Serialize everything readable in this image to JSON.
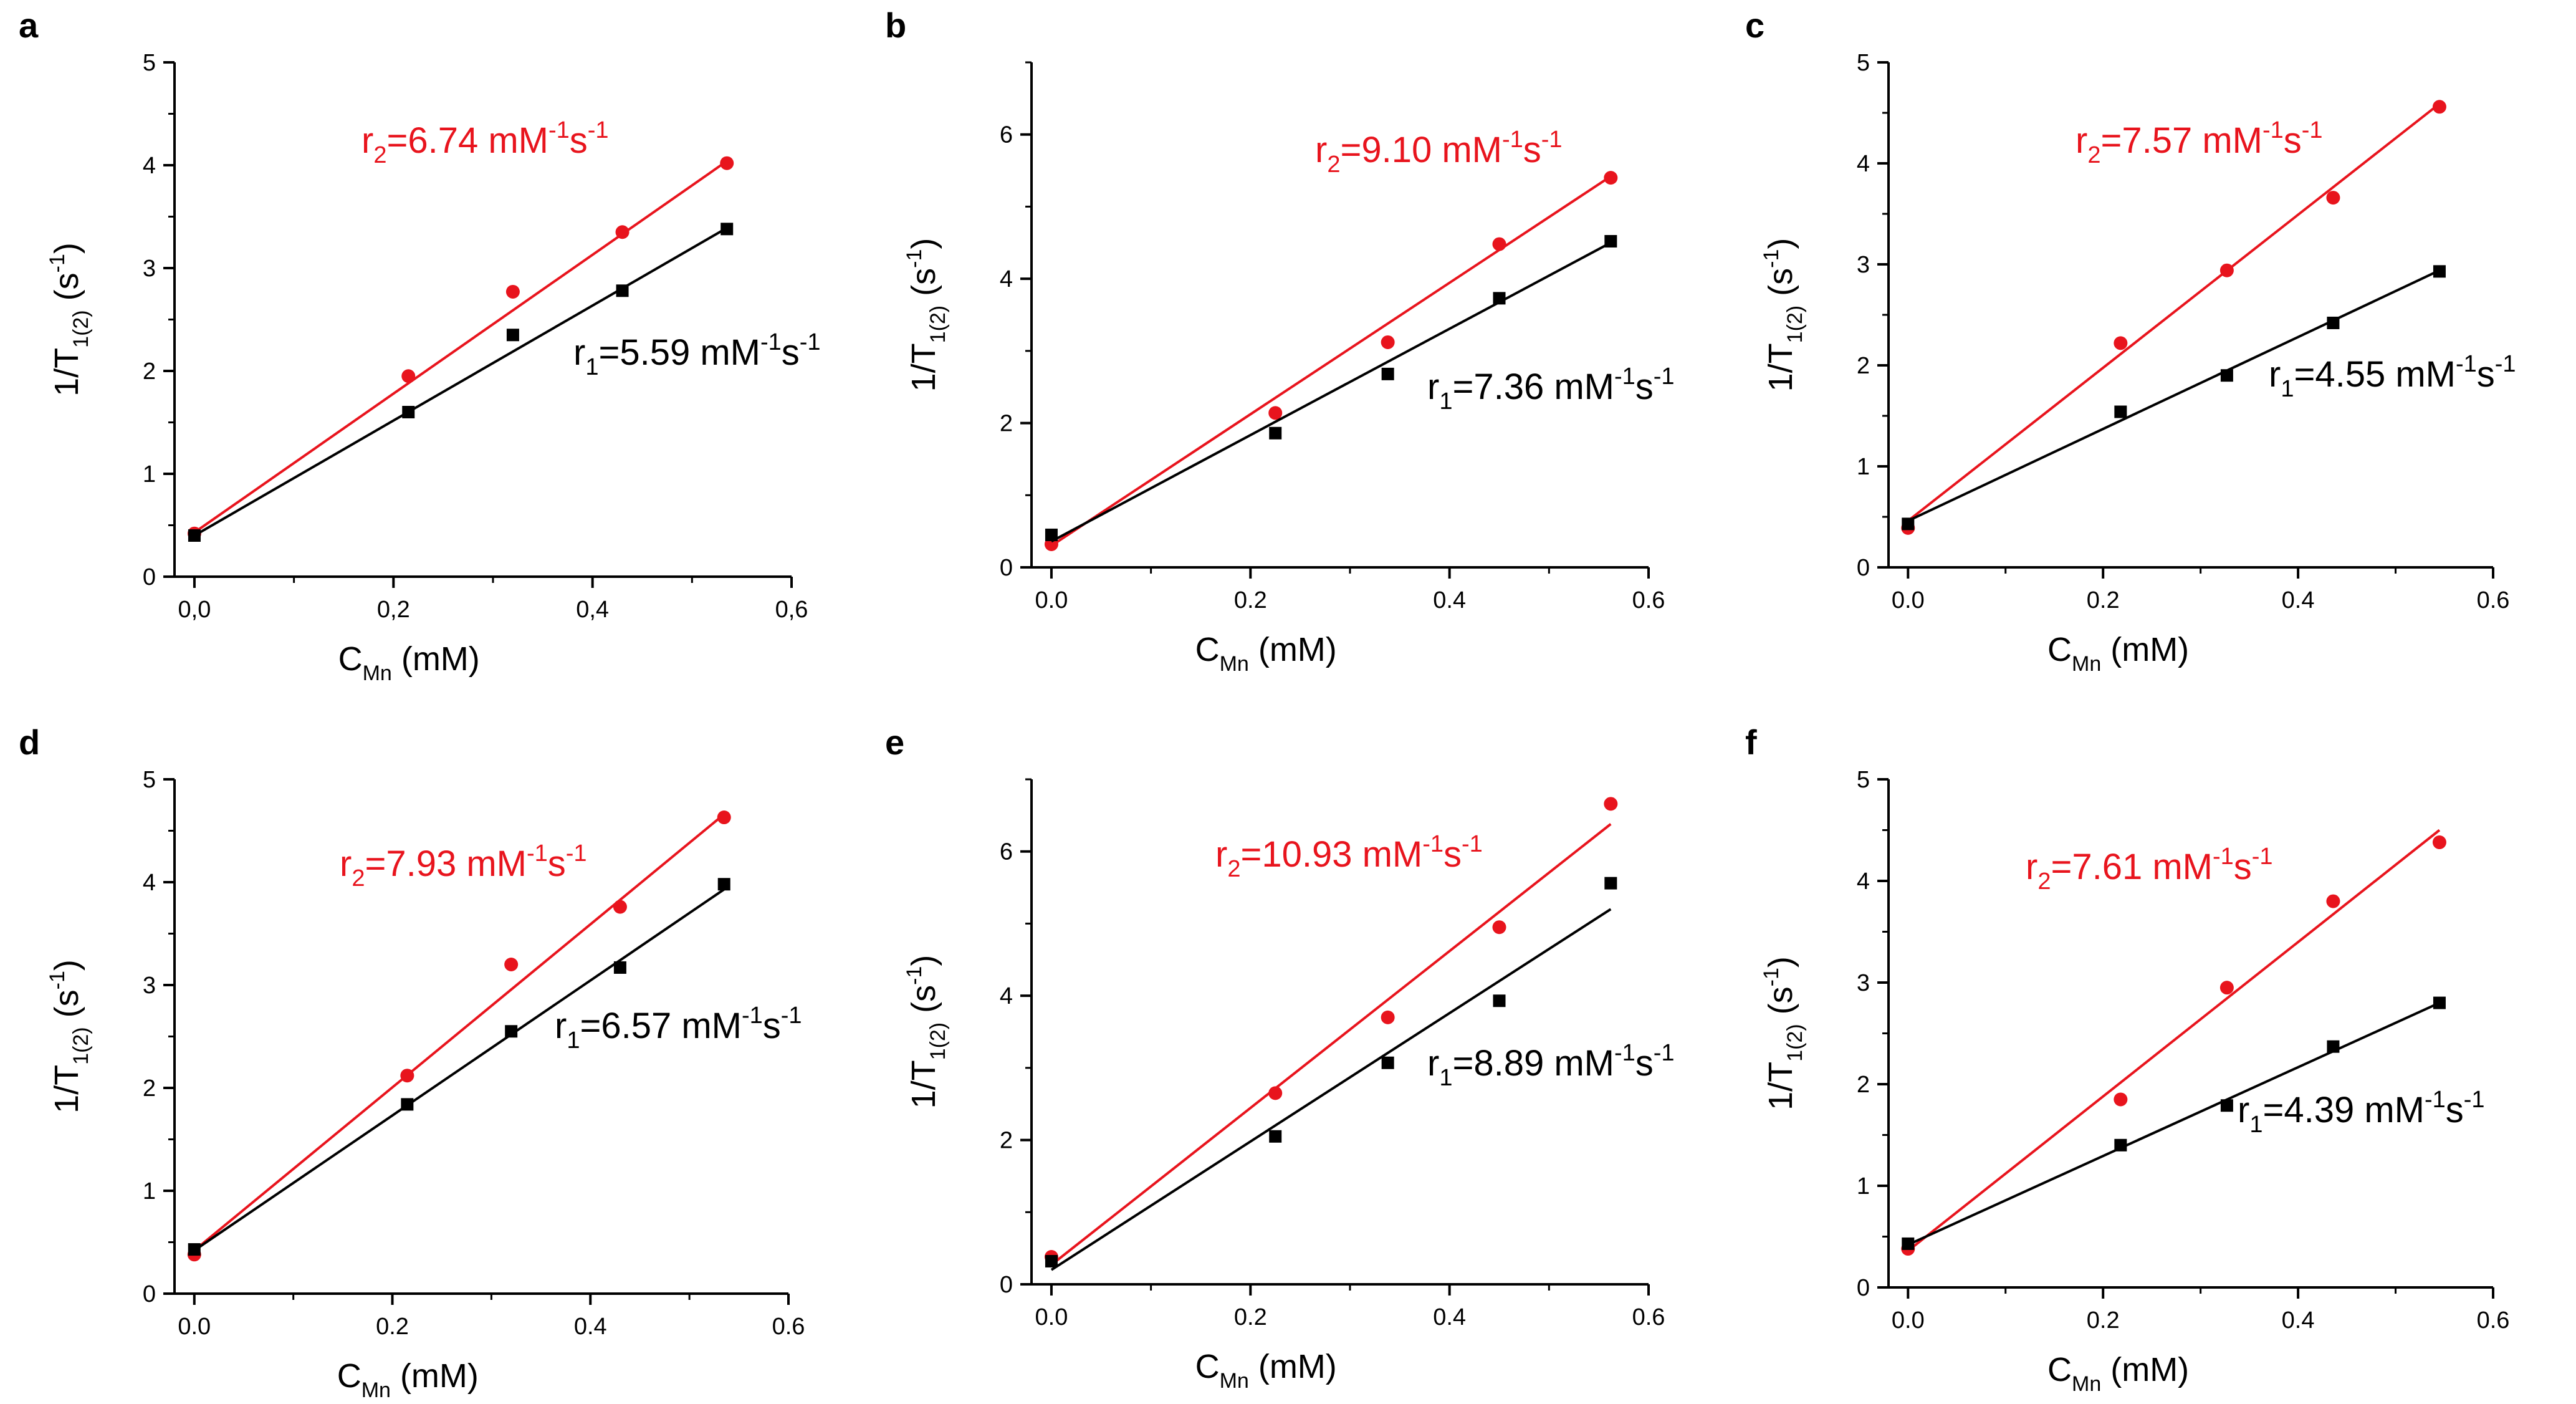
{
  "figure": {
    "colors": {
      "r2": "#e8141d",
      "r1": "#000000",
      "axis": "#000000"
    },
    "icons": {
      "r1_marker": "square-marker",
      "r2_marker": "circle-marker"
    }
  },
  "chart_data": [
    {
      "panel": "a",
      "type": "scatter",
      "xlabel": {
        "main": "C",
        "sub": "Mn",
        "unit": " (mM)"
      },
      "ylabel": {
        "main": "1/T",
        "sub": "1(2)",
        "unit": " (s",
        "unit_sup": "-1",
        "close": ")"
      },
      "xlim": [
        -0.02,
        0.6
      ],
      "ylim": [
        0,
        5
      ],
      "xticks": [
        0,
        0.2,
        0.4,
        0.6
      ],
      "xtick_labels": [
        "0,0",
        "0,2",
        "0,4",
        "0,6"
      ],
      "yticks": [
        0,
        1,
        2,
        3,
        4,
        5
      ],
      "ytick_labels": [
        "0",
        "1",
        "2",
        "3",
        "4",
        "5"
      ],
      "series": [
        {
          "name": "r2",
          "marker": "circle",
          "x": [
            0,
            0.215,
            0.32,
            0.43,
            0.535
          ],
          "y": [
            0.42,
            1.95,
            2.77,
            3.35,
            4.02
          ],
          "fit": {
            "x": [
              0,
              0.535
            ],
            "y": [
              0.43,
              4.04
            ]
          },
          "annotation": {
            "symbol": "r",
            "sub": "2",
            "value": "=6.74 mM",
            "sup1": "-1",
            "mid": "s",
            "sup2": "-1"
          }
        },
        {
          "name": "r1",
          "marker": "square",
          "x": [
            0,
            0.215,
            0.32,
            0.43,
            0.535
          ],
          "y": [
            0.4,
            1.6,
            2.35,
            2.78,
            3.38
          ],
          "fit": {
            "x": [
              0,
              0.535
            ],
            "y": [
              0.4,
              3.39
            ]
          },
          "annotation": {
            "symbol": "r",
            "sub": "1",
            "value": "=5.59 mM",
            "sup1": "-1",
            "mid": "s",
            "sup2": "-1"
          }
        }
      ]
    },
    {
      "panel": "b",
      "type": "scatter",
      "xlabel": {
        "main": "C",
        "sub": "Mn",
        "unit": " (mM)"
      },
      "ylabel": {
        "main": "1/T",
        "sub": "1(2)",
        "unit": " (s",
        "unit_sup": "-1",
        "close": ")"
      },
      "xlim": [
        -0.02,
        0.6
      ],
      "ylim": [
        0,
        7
      ],
      "xticks": [
        0,
        0.2,
        0.4,
        0.6
      ],
      "xtick_labels": [
        "0.0",
        "0.2",
        "0.4",
        "0.6"
      ],
      "yticks": [
        0,
        2,
        4,
        6
      ],
      "ytick_labels": [
        "0",
        "2",
        "4",
        "6"
      ],
      "series": [
        {
          "name": "r2",
          "marker": "circle",
          "x": [
            0,
            0.225,
            0.338,
            0.45,
            0.562
          ],
          "y": [
            0.32,
            2.14,
            3.12,
            4.48,
            5.4
          ],
          "fit": {
            "x": [
              0,
              0.562
            ],
            "y": [
              0.3,
              5.42
            ]
          },
          "annotation": {
            "symbol": "r",
            "sub": "2",
            "value": "=9.10 mM",
            "sup1": "-1",
            "mid": "s",
            "sup2": "-1"
          }
        },
        {
          "name": "r1",
          "marker": "square",
          "x": [
            0,
            0.225,
            0.338,
            0.45,
            0.562
          ],
          "y": [
            0.45,
            1.86,
            2.68,
            3.73,
            4.52
          ],
          "fit": {
            "x": [
              0,
              0.562
            ],
            "y": [
              0.36,
              4.5
            ]
          },
          "annotation": {
            "symbol": "r",
            "sub": "1",
            "value": "=7.36 mM",
            "sup1": "-1",
            "mid": "s",
            "sup2": "-1"
          }
        }
      ]
    },
    {
      "panel": "c",
      "type": "scatter",
      "xlabel": {
        "main": "C",
        "sub": "Mn",
        "unit": " (mM)"
      },
      "ylabel": {
        "main": "1/T",
        "sub": "1(2)",
        "unit": " (s",
        "unit_sup": "-1",
        "close": ")"
      },
      "xlim": [
        -0.02,
        0.6
      ],
      "ylim": [
        0,
        5
      ],
      "xticks": [
        0,
        0.2,
        0.4,
        0.6
      ],
      "xtick_labels": [
        "0.0",
        "0.2",
        "0.4",
        "0.6"
      ],
      "yticks": [
        0,
        1,
        2,
        3,
        4,
        5
      ],
      "ytick_labels": [
        "0",
        "1",
        "2",
        "3",
        "4",
        "5"
      ],
      "series": [
        {
          "name": "r2",
          "marker": "circle",
          "x": [
            0,
            0.218,
            0.327,
            0.436,
            0.545
          ],
          "y": [
            0.39,
            2.22,
            2.94,
            3.66,
            4.56
          ],
          "fit": {
            "x": [
              0,
              0.545
            ],
            "y": [
              0.46,
              4.59
            ]
          },
          "annotation": {
            "symbol": "r",
            "sub": "2",
            "value": "=7.57 mM",
            "sup1": "-1",
            "mid": "s",
            "sup2": "-1"
          }
        },
        {
          "name": "r1",
          "marker": "square",
          "x": [
            0,
            0.218,
            0.327,
            0.436,
            0.545
          ],
          "y": [
            0.43,
            1.54,
            1.9,
            2.42,
            2.93
          ],
          "fit": {
            "x": [
              0,
              0.545
            ],
            "y": [
              0.46,
              2.94
            ]
          },
          "annotation": {
            "symbol": "r",
            "sub": "1",
            "value": "=4.55 mM",
            "sup1": "-1",
            "mid": "s",
            "sup2": "-1"
          }
        }
      ]
    },
    {
      "panel": "d",
      "type": "scatter",
      "xlabel": {
        "main": "C",
        "sub": "Mn",
        "unit": " (mM)"
      },
      "ylabel": {
        "main": "1/T",
        "sub": "1(2)",
        "unit": " (s",
        "unit_sup": "-1",
        "close": ")"
      },
      "xlim": [
        -0.02,
        0.6
      ],
      "ylim": [
        0,
        5
      ],
      "xticks": [
        0,
        0.2,
        0.4,
        0.6
      ],
      "xtick_labels": [
        "0.0",
        "0.2",
        "0.4",
        "0.6"
      ],
      "yticks": [
        0,
        1,
        2,
        3,
        4,
        5
      ],
      "ytick_labels": [
        "0",
        "1",
        "2",
        "3",
        "4",
        "5"
      ],
      "series": [
        {
          "name": "r2",
          "marker": "circle",
          "x": [
            0,
            0.215,
            0.32,
            0.43,
            0.535
          ],
          "y": [
            0.38,
            2.12,
            3.2,
            3.76,
            4.63
          ],
          "fit": {
            "x": [
              0,
              0.535
            ],
            "y": [
              0.42,
              4.66
            ]
          },
          "annotation": {
            "symbol": "r",
            "sub": "2",
            "value": "=7.93 mM",
            "sup1": "-1",
            "mid": "s",
            "sup2": "-1"
          }
        },
        {
          "name": "r1",
          "marker": "square",
          "x": [
            0,
            0.215,
            0.32,
            0.43,
            0.535
          ],
          "y": [
            0.43,
            1.84,
            2.55,
            3.17,
            3.98
          ],
          "fit": {
            "x": [
              0,
              0.535
            ],
            "y": [
              0.42,
              3.93
            ]
          },
          "annotation": {
            "symbol": "r",
            "sub": "1",
            "value": "=6.57 mM",
            "sup1": "-1",
            "mid": "s",
            "sup2": "-1"
          }
        }
      ]
    },
    {
      "panel": "e",
      "type": "scatter",
      "xlabel": {
        "main": "C",
        "sub": "Mn",
        "unit": " (mM)"
      },
      "ylabel": {
        "main": "1/T",
        "sub": "1(2)",
        "unit": " (s",
        "unit_sup": "-1",
        "close": ")"
      },
      "xlim": [
        -0.02,
        0.6
      ],
      "ylim": [
        0,
        7
      ],
      "xticks": [
        0,
        0.2,
        0.4,
        0.6
      ],
      "xtick_labels": [
        "0.0",
        "0.2",
        "0.4",
        "0.6"
      ],
      "yticks": [
        0,
        2,
        4,
        6
      ],
      "ytick_labels": [
        "0",
        "2",
        "4",
        "6"
      ],
      "series": [
        {
          "name": "r2",
          "marker": "circle",
          "x": [
            0,
            0.225,
            0.338,
            0.45,
            0.562
          ],
          "y": [
            0.38,
            2.65,
            3.7,
            4.95,
            6.66
          ],
          "fit": {
            "x": [
              0,
              0.562
            ],
            "y": [
              0.27,
              6.38
            ]
          },
          "annotation": {
            "symbol": "r",
            "sub": "2",
            "value": "=10.93 mM",
            "sup1": "-1",
            "mid": "s",
            "sup2": "-1"
          }
        },
        {
          "name": "r1",
          "marker": "square",
          "x": [
            0,
            0.225,
            0.338,
            0.45,
            0.562
          ],
          "y": [
            0.32,
            2.05,
            3.07,
            3.93,
            5.56
          ],
          "fit": {
            "x": [
              0,
              0.562
            ],
            "y": [
              0.2,
              5.2
            ]
          },
          "annotation": {
            "symbol": "r",
            "sub": "1",
            "value": "=8.89 mM",
            "sup1": "-1",
            "mid": "s",
            "sup2": "-1"
          }
        }
      ]
    },
    {
      "panel": "f",
      "type": "scatter",
      "xlabel": {
        "main": "C",
        "sub": "Mn",
        "unit": " (mM)"
      },
      "ylabel": {
        "main": "1/T",
        "sub": "1(2)",
        "unit": " (s",
        "unit_sup": "-1",
        "close": ")"
      },
      "xlim": [
        -0.02,
        0.6
      ],
      "ylim": [
        0,
        5
      ],
      "xticks": [
        0,
        0.2,
        0.4,
        0.6
      ],
      "xtick_labels": [
        "0.0",
        "0.2",
        "0.4",
        "0.6"
      ],
      "yticks": [
        0,
        1,
        2,
        3,
        4,
        5
      ],
      "ytick_labels": [
        "0",
        "1",
        "2",
        "3",
        "4",
        "5"
      ],
      "series": [
        {
          "name": "r2",
          "marker": "circle",
          "x": [
            0,
            0.218,
            0.327,
            0.436,
            0.545
          ],
          "y": [
            0.38,
            1.85,
            2.95,
            3.8,
            4.38
          ],
          "fit": {
            "x": [
              0,
              0.545
            ],
            "y": [
              0.36,
              4.5
            ]
          },
          "annotation": {
            "symbol": "r",
            "sub": "2",
            "value": "=7.61 mM",
            "sup1": "-1",
            "mid": "s",
            "sup2": "-1"
          }
        },
        {
          "name": "r1",
          "marker": "square",
          "x": [
            0,
            0.218,
            0.327,
            0.436,
            0.545
          ],
          "y": [
            0.43,
            1.4,
            1.79,
            2.37,
            2.8
          ],
          "fit": {
            "x": [
              0,
              0.545
            ],
            "y": [
              0.42,
              2.8
            ]
          },
          "annotation": {
            "symbol": "r",
            "sub": "1",
            "value": "=4.39 mM",
            "sup1": "-1",
            "mid": "s",
            "sup2": "-1"
          }
        }
      ]
    }
  ]
}
